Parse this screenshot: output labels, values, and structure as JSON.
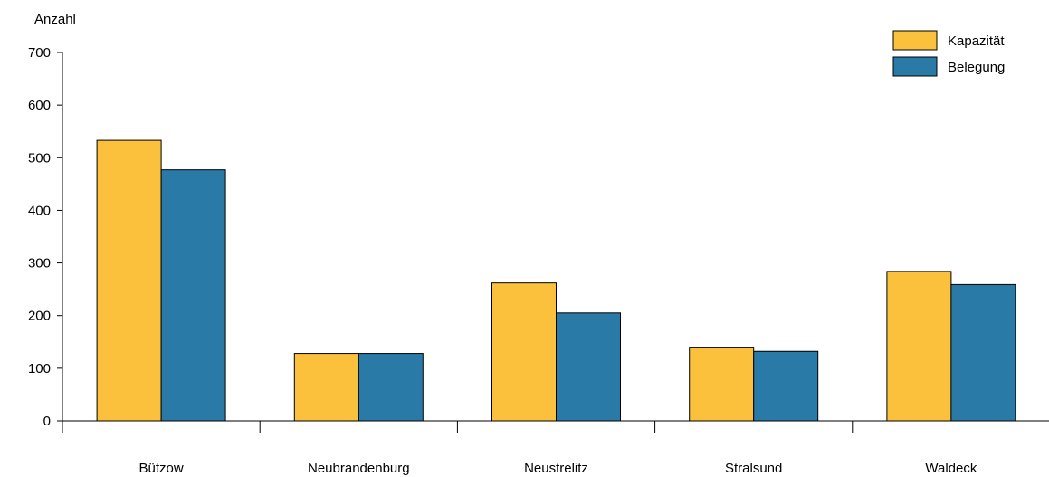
{
  "chart_data": {
    "type": "bar",
    "ylabel": "Anzahl",
    "xlabel": "",
    "categories": [
      "Bützow",
      "Neubrandenburg",
      "Neustrelitz",
      "Stralsund",
      "Waldeck"
    ],
    "series": [
      {
        "name": "Kapazität",
        "color": "#FBC03C",
        "values": [
          533,
          128,
          262,
          140,
          284
        ]
      },
      {
        "name": "Belegung",
        "color": "#2A7AA8",
        "values": [
          477,
          128,
          205,
          132,
          259
        ]
      }
    ],
    "ylim": [
      0,
      700
    ],
    "yticks": [
      0,
      100,
      200,
      300,
      400,
      500,
      600,
      700
    ],
    "grid": false,
    "legend": "top-right"
  }
}
